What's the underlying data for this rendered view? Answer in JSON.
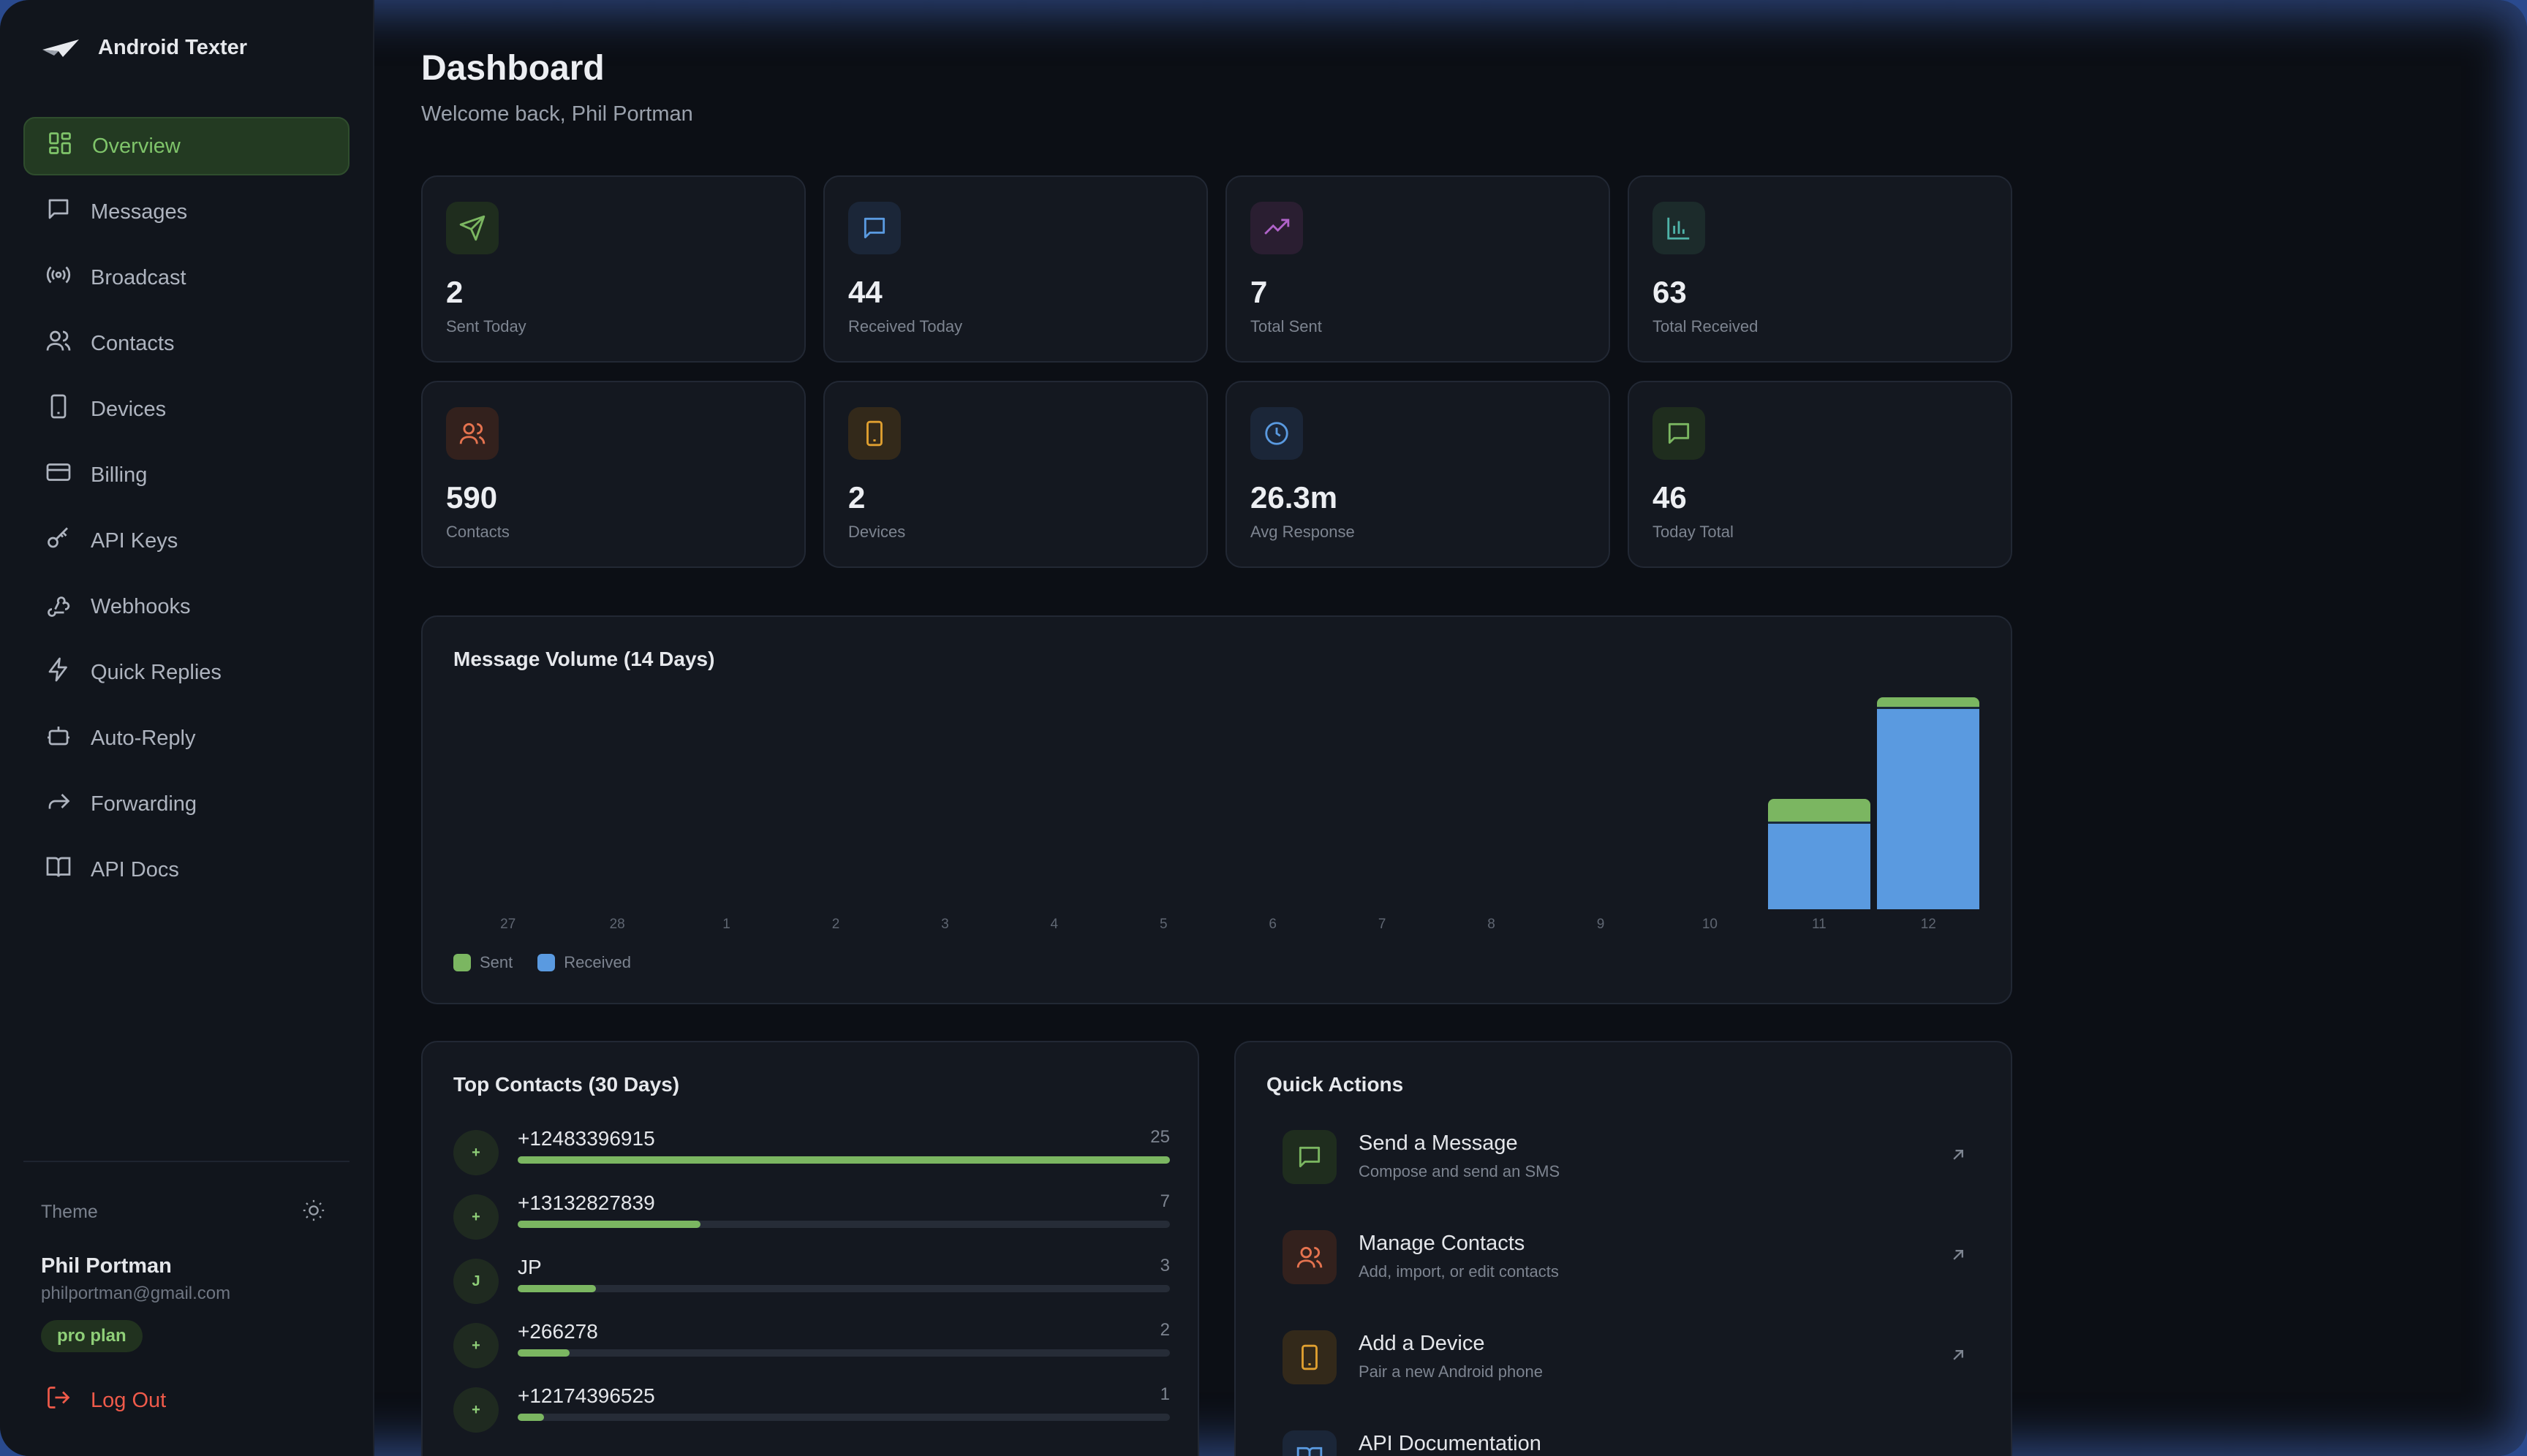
{
  "app": {
    "name": "Android Texter"
  },
  "sidebar": {
    "items": [
      {
        "label": "Overview",
        "icon": "grid-icon",
        "active": true
      },
      {
        "label": "Messages",
        "icon": "message-icon"
      },
      {
        "label": "Broadcast",
        "icon": "broadcast-icon"
      },
      {
        "label": "Contacts",
        "icon": "users-icon"
      },
      {
        "label": "Devices",
        "icon": "phone-icon"
      },
      {
        "label": "Billing",
        "icon": "credit-card-icon"
      },
      {
        "label": "API Keys",
        "icon": "key-icon"
      },
      {
        "label": "Webhooks",
        "icon": "webhook-icon"
      },
      {
        "label": "Quick Replies",
        "icon": "zap-icon"
      },
      {
        "label": "Auto-Reply",
        "icon": "bot-icon"
      },
      {
        "label": "Forwarding",
        "icon": "forward-icon"
      },
      {
        "label": "API Docs",
        "icon": "book-icon"
      }
    ],
    "theme_label": "Theme",
    "user": {
      "name": "Phil Portman",
      "email": "philportman@gmail.com",
      "plan": "pro plan"
    },
    "logout_label": "Log Out"
  },
  "header": {
    "title": "Dashboard",
    "subtitle": "Welcome back, Phil Portman"
  },
  "stats": [
    {
      "value": "2",
      "label": "Sent Today",
      "icon": "send-icon",
      "color": "#7bb661",
      "bg": "#1f2d1e"
    },
    {
      "value": "44",
      "label": "Received Today",
      "icon": "message-icon",
      "color": "#5a9ae0",
      "bg": "#1b2638"
    },
    {
      "value": "7",
      "label": "Total Sent",
      "icon": "trending-up-icon",
      "color": "#b063c9",
      "bg": "#2a1e31"
    },
    {
      "value": "63",
      "label": "Total Received",
      "icon": "bar-chart-icon",
      "color": "#4fb3a8",
      "bg": "#1c2b2b"
    },
    {
      "value": "590",
      "label": "Contacts",
      "icon": "users-icon",
      "color": "#e5734f",
      "bg": "#33211d"
    },
    {
      "value": "2",
      "label": "Devices",
      "icon": "phone-icon",
      "color": "#e0a030",
      "bg": "#33291a"
    },
    {
      "value": "26.3m",
      "label": "Avg Response",
      "icon": "clock-icon",
      "color": "#5a9ae0",
      "bg": "#1b2638"
    },
    {
      "value": "46",
      "label": "Today Total",
      "icon": "message-icon",
      "color": "#7bb661",
      "bg": "#1f2d1e"
    }
  ],
  "volume": {
    "title": "Message Volume (14 Days)",
    "legend": {
      "sent": "Sent",
      "received": "Received"
    }
  },
  "chart_data": {
    "type": "bar",
    "title": "Message Volume (14 Days)",
    "categories": [
      "27",
      "28",
      "1",
      "2",
      "3",
      "4",
      "5",
      "6",
      "7",
      "8",
      "9",
      "10",
      "11",
      "12"
    ],
    "series": [
      {
        "name": "Sent",
        "values": [
          0,
          0,
          0,
          0,
          0,
          0,
          0,
          0,
          0,
          0,
          0,
          0,
          5,
          2
        ]
      },
      {
        "name": "Received",
        "values": [
          0,
          0,
          0,
          0,
          0,
          0,
          0,
          0,
          0,
          0,
          0,
          0,
          19,
          44
        ]
      }
    ],
    "stacked": true,
    "ylim": [
      0,
      46
    ],
    "grid": false,
    "legend_position": "bottom-left",
    "colors": {
      "Sent": "#7bb661",
      "Received": "#5a9ae0"
    }
  },
  "top_contacts": {
    "title": "Top Contacts (30 Days)",
    "items": [
      {
        "avatar": "+",
        "name": "+12483396915",
        "count": "25",
        "fraction": 1.0
      },
      {
        "avatar": "+",
        "name": "+13132827839",
        "count": "7",
        "fraction": 0.28
      },
      {
        "avatar": "J",
        "name": "JP",
        "count": "3",
        "fraction": 0.12
      },
      {
        "avatar": "+",
        "name": "+266278",
        "count": "2",
        "fraction": 0.08
      },
      {
        "avatar": "+",
        "name": "+12174396525",
        "count": "1",
        "fraction": 0.04
      }
    ]
  },
  "quick_actions": {
    "title": "Quick Actions",
    "items": [
      {
        "title": "Send a Message",
        "desc": "Compose and send an SMS",
        "icon": "message-icon",
        "color": "#7bb661",
        "bg": "#1f2d1e"
      },
      {
        "title": "Manage Contacts",
        "desc": "Add, import, or edit contacts",
        "icon": "users-icon",
        "color": "#e5734f",
        "bg": "#33211d"
      },
      {
        "title": "Add a Device",
        "desc": "Pair a new Android phone",
        "icon": "phone-icon",
        "color": "#e0a030",
        "bg": "#33291a"
      },
      {
        "title": "API Documentation",
        "desc": "",
        "icon": "book-icon",
        "color": "#5a9ae0",
        "bg": "#1b2638"
      }
    ]
  }
}
